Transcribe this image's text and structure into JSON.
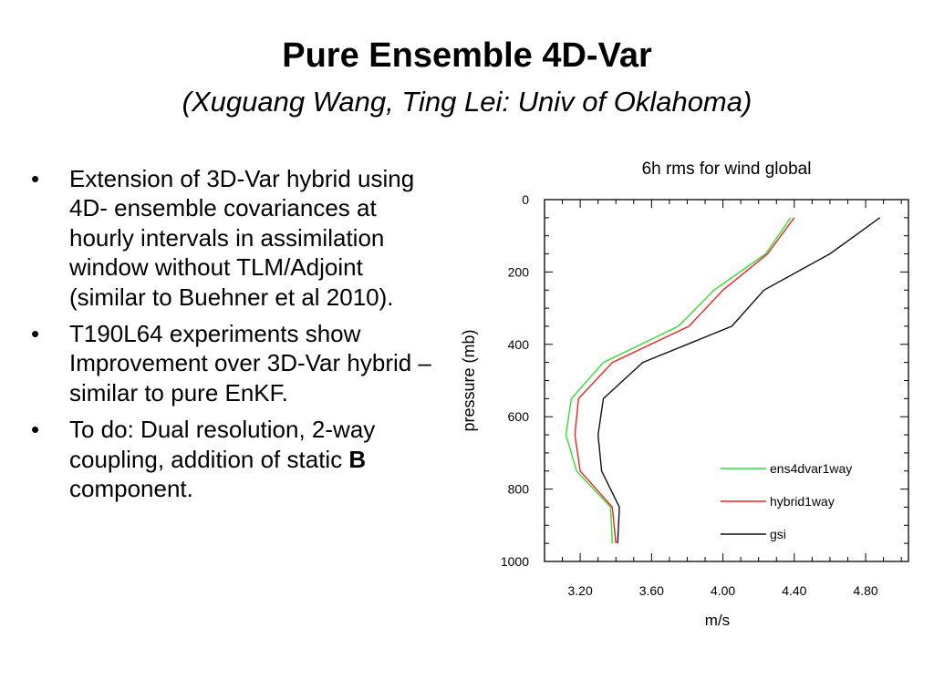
{
  "slide": {
    "title": "Pure Ensemble 4D-Var",
    "subtitle": "(Xuguang Wang, Ting Lei:  Univ of Oklahoma)"
  },
  "bullets": [
    {
      "marker": "•",
      "parts": [
        {
          "text": "Extension of 3D-Var hybrid using 4D- ensemble covariances at hourly intervals in assimilation window without TLM/Adjoint (similar to Buehner et al 2010).",
          "bold": false
        }
      ]
    },
    {
      "marker": "•",
      "parts": [
        {
          "text": "T190L64 experiments show Improvement over 3D-Var hybrid – similar to pure EnKF.",
          "bold": false
        }
      ]
    },
    {
      "marker": "•",
      "parts": [
        {
          "text": "To do: Dual resolution, 2-way coupling, addition of static ",
          "bold": false
        },
        {
          "text": "B",
          "bold": true
        },
        {
          "text": " component.",
          "bold": false
        }
      ]
    }
  ],
  "chart_data": {
    "type": "line",
    "title": "6h rms for wind global",
    "xlabel": "m/s",
    "ylabel": "pressure (mb)",
    "xlim": [
      3.0,
      5.04
    ],
    "ylim": [
      1000,
      0
    ],
    "x_ticks": [
      "3.20",
      "3.60",
      "4.00",
      "4.40",
      "4.80"
    ],
    "y_ticks": [
      "0",
      "200",
      "400",
      "600",
      "800",
      "1000"
    ],
    "legend_position": "lower-right",
    "grid": false,
    "y": [
      50,
      150,
      250,
      350,
      450,
      550,
      650,
      750,
      850,
      950
    ],
    "series": [
      {
        "name": "ens4dvar1way",
        "color": "#33dd33",
        "x": [
          4.38,
          4.24,
          3.95,
          3.75,
          3.33,
          3.15,
          3.12,
          3.18,
          3.37,
          3.38
        ]
      },
      {
        "name": "hybrid1way",
        "color": "#ee2222",
        "x": [
          4.4,
          4.25,
          4.0,
          3.81,
          3.38,
          3.19,
          3.17,
          3.2,
          3.38,
          3.4
        ]
      },
      {
        "name": "gsi",
        "color": "#111111",
        "x": [
          4.88,
          4.6,
          4.23,
          4.05,
          3.55,
          3.33,
          3.3,
          3.32,
          3.42,
          3.41
        ]
      }
    ]
  }
}
